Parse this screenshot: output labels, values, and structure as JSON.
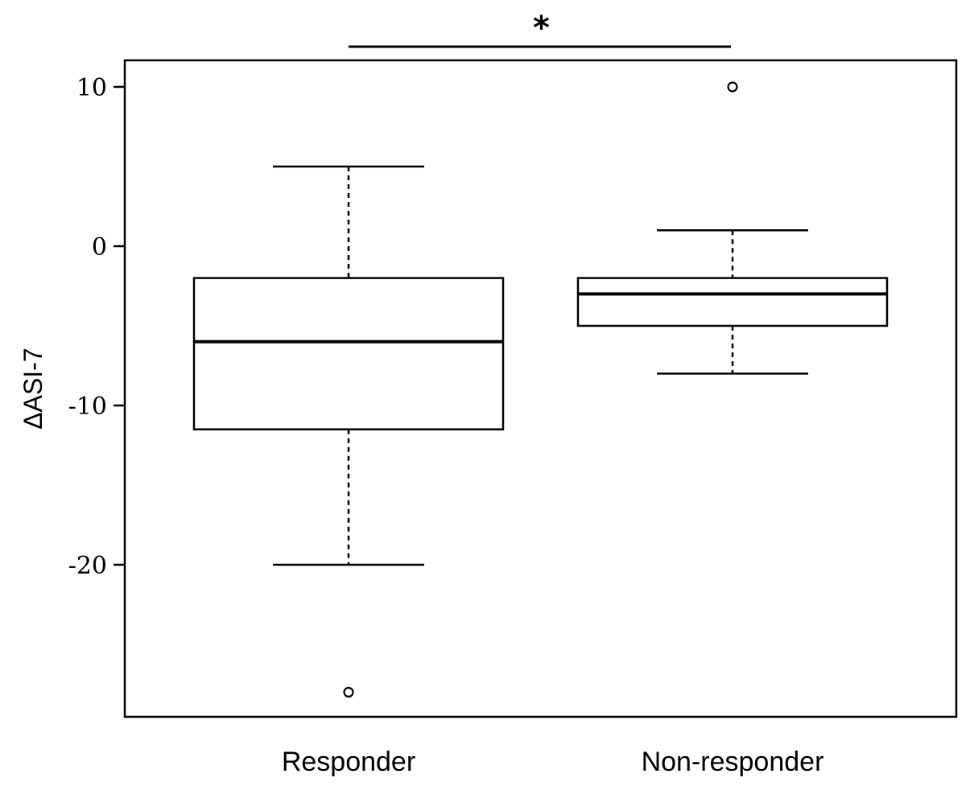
{
  "chart_data": {
    "type": "boxplot",
    "ylabel": "ΔASI-7",
    "ylim": [
      -29,
      11.5
    ],
    "yticks": [
      10,
      0,
      -10,
      -20
    ],
    "categories": [
      "Responder",
      "Non-responder"
    ],
    "boxes": [
      {
        "category": "Responder",
        "whisker_low": -20,
        "q1": -11.5,
        "median": -6,
        "q3": -2,
        "whisker_high": 5,
        "outliers": [
          -28
        ]
      },
      {
        "category": "Non-responder",
        "whisker_low": -8,
        "q1": -5,
        "median": -3,
        "q3": -2,
        "whisker_high": 1,
        "outliers": [
          10
        ]
      }
    ],
    "significance": {
      "label": "*",
      "between": [
        "Responder",
        "Non-responder"
      ]
    },
    "grid": false
  }
}
